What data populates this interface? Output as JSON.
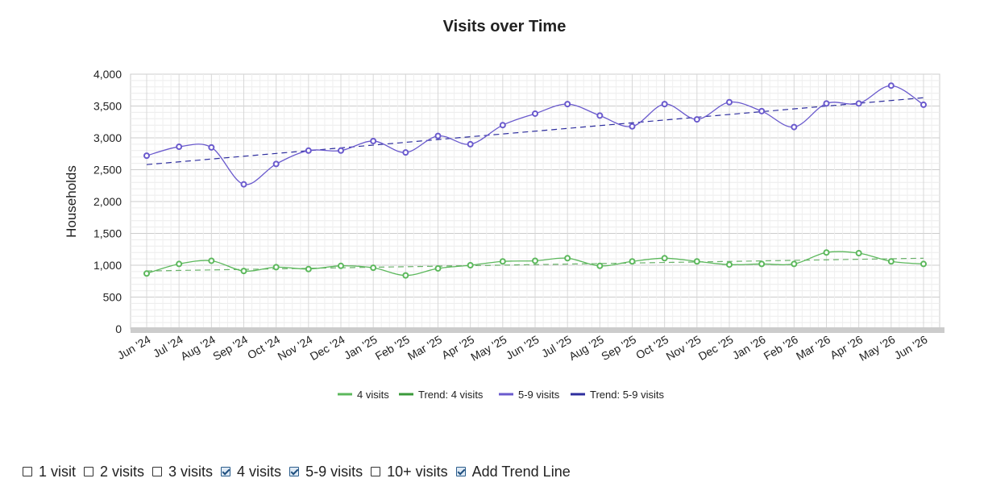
{
  "chart_data": {
    "type": "line",
    "title": "Visits over Time",
    "ylabel": "Households",
    "xlabel": "",
    "ylim": [
      0,
      4000
    ],
    "yticks": [
      "0",
      "500",
      "1,000",
      "1,500",
      "2,000",
      "2,500",
      "3,000",
      "3,500",
      "4,000"
    ],
    "categories": [
      "Jun '24",
      "Jul '24",
      "Aug '24",
      "Sep '24",
      "Oct '24",
      "Nov '24",
      "Dec '24",
      "Jan '25",
      "Feb '25",
      "Mar '25",
      "Apr '25",
      "May '25",
      "Jun '25",
      "Jul '25",
      "Aug '25",
      "Sep '25",
      "Oct '25",
      "Nov '25",
      "Dec '25",
      "Jan '26",
      "Feb '26",
      "Mar '26",
      "Apr '26",
      "May '26",
      "Jun '26"
    ],
    "series": [
      {
        "name": "4 visits",
        "color": "#5cb85c",
        "values": [
          870,
          1020,
          1070,
          910,
          970,
          940,
          990,
          960,
          840,
          950,
          1000,
          1060,
          1070,
          1110,
          990,
          1060,
          1110,
          1060,
          1010,
          1020,
          1020,
          1200,
          1190,
          1060,
          1020
        ]
      },
      {
        "name": "5-9 visits",
        "color": "#6a5acd",
        "values": [
          2720,
          2860,
          2850,
          2270,
          2590,
          2800,
          2800,
          2950,
          2770,
          3030,
          2900,
          3200,
          3380,
          3530,
          3350,
          3180,
          3530,
          3290,
          3560,
          3420,
          3170,
          3540,
          3540,
          3820,
          3520
        ]
      }
    ],
    "trends": [
      {
        "name": "Trend: 4 visits",
        "color": "#3a9a3a",
        "start": 910,
        "end": 1110
      },
      {
        "name": "Trend: 5-9 visits",
        "color": "#2e2e9e",
        "start": 2580,
        "end": 3630
      }
    ],
    "legend_position": "bottom",
    "grid": true
  },
  "controls": [
    {
      "label": "1 visit",
      "checked": false
    },
    {
      "label": "2 visits",
      "checked": false
    },
    {
      "label": "3 visits",
      "checked": false
    },
    {
      "label": "4 visits",
      "checked": true
    },
    {
      "label": "5-9 visits",
      "checked": true
    },
    {
      "label": "10+ visits",
      "checked": false
    },
    {
      "label": "Add Trend Line",
      "checked": true
    }
  ]
}
